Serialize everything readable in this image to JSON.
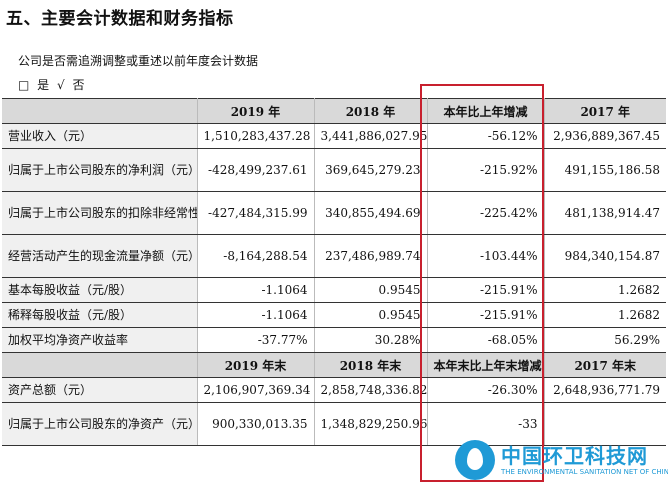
{
  "section_title": "五、主要会计数据和财务指标",
  "question": "公司是否需追溯调整或重述以前年度会计数据",
  "answer": {
    "box": "□",
    "yes": "是",
    "check": "√",
    "no": "否"
  },
  "header1": [
    "",
    "2019 年",
    "2018 年",
    "本年比上年增减",
    "2017 年"
  ],
  "rows1": [
    {
      "label": "营业收入（元）",
      "v2019": "1,510,283,437.28",
      "v2018": "3,441,886,027.95",
      "change": "-56.12%",
      "v2017": "2,936,889,367.45"
    },
    {
      "label": "归属于上市公司股东的净利润（元）",
      "v2019": "-428,499,237.61",
      "v2018": "369,645,279.23",
      "change": "-215.92%",
      "v2017": "491,155,186.58"
    },
    {
      "label": "归属于上市公司股东的扣除非经常性损益的净利润（元）",
      "v2019": "-427,484,315.99",
      "v2018": "340,855,494.69",
      "change": "-225.42%",
      "v2017": "481,138,914.47"
    },
    {
      "label": "经营活动产生的现金流量净额（元）",
      "v2019": "-8,164,288.54",
      "v2018": "237,486,989.74",
      "change": "-103.44%",
      "v2017": "984,340,154.87"
    },
    {
      "label": "基本每股收益（元/股）",
      "v2019": "-1.1064",
      "v2018": "0.9545",
      "change": "-215.91%",
      "v2017": "1.2682"
    },
    {
      "label": "稀释每股收益（元/股）",
      "v2019": "-1.1064",
      "v2018": "0.9545",
      "change": "-215.91%",
      "v2017": "1.2682"
    },
    {
      "label": "加权平均净资产收益率",
      "v2019": "-37.77%",
      "v2018": "30.28%",
      "change": "-68.05%",
      "v2017": "56.29%"
    }
  ],
  "header2": [
    "",
    "2019 年末",
    "2018 年末",
    "本年末比上年末增减",
    "2017 年末"
  ],
  "rows2": [
    {
      "label": "资产总额（元）",
      "v2019": "2,106,907,369.34",
      "v2018": "2,858,748,336.82",
      "change": "-26.30%",
      "v2017": "2,648,936,771.79"
    },
    {
      "label": "归属于上市公司股东的净资产（元）",
      "v2019": "900,330,013.35",
      "v2018": "1,348,829,250.96",
      "change": "-33",
      "v2017": ""
    }
  ],
  "watermark": {
    "title": "中国环卫科技网",
    "subtitle": "THE ENVIRONMENTAL SANITATION NET OF CHINA"
  },
  "colors": {
    "highlight": "#c8202e",
    "header_bg": "#d9d9d9",
    "label_bg": "#f0f0f0",
    "watermark": "#1f9ad6"
  }
}
